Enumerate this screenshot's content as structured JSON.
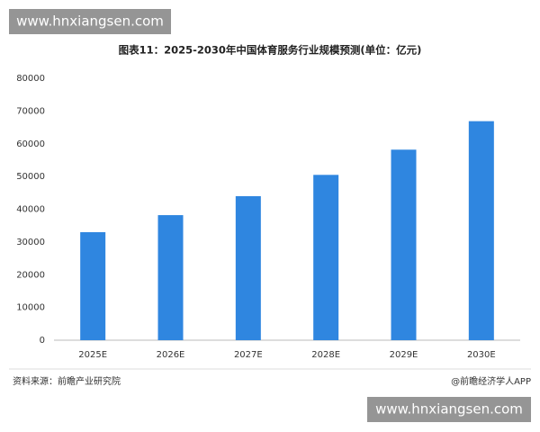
{
  "chart_data": {
    "type": "bar",
    "title": "图表11：2025-2030年中国体育服务行业规模预测(单位：亿元)",
    "categories": [
      "2025E",
      "2026E",
      "2027E",
      "2028E",
      "2029E",
      "2030E"
    ],
    "values": [
      33000,
      38200,
      44000,
      50500,
      58200,
      66900
    ],
    "color": "#2f86e0",
    "ylim": [
      0,
      80000
    ],
    "yticks": [
      0,
      10000,
      20000,
      30000,
      40000,
      50000,
      60000,
      70000,
      80000
    ],
    "grid": false,
    "source": "资料来源：前瞻产业研究院",
    "credit": "@前瞻经济学人APP",
    "watermarks": [
      "www.hnxiangsen.com",
      "www.hnxiangsen.com"
    ]
  }
}
